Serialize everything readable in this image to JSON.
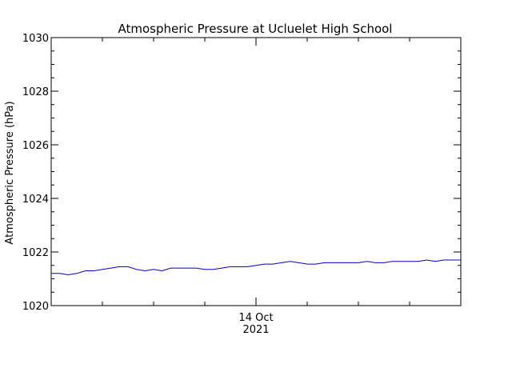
{
  "chart_data": {
    "type": "line",
    "title": "Atmospheric Pressure at Ucluelet High School",
    "ylabel": "Atmospheric Pressure (hPa)",
    "xlabel": "",
    "ylim": [
      1020,
      1030
    ],
    "yticks": [
      1020,
      1022,
      1024,
      1026,
      1028,
      1030
    ],
    "yticks_minor_step": 0.5,
    "xlim": [
      0,
      24
    ],
    "x_ticks": [
      {
        "x": 12,
        "labels": [
          "14 Oct",
          "2021"
        ]
      }
    ],
    "x_minor_ticks": [
      0,
      3,
      6,
      9,
      15,
      18,
      21,
      24
    ],
    "grid": false,
    "legend": "none",
    "series": [
      {
        "color": "#0000cc",
        "x": [
          0,
          0.5,
          1,
          1.5,
          2,
          2.5,
          3,
          3.5,
          4,
          4.5,
          5,
          5.5,
          6,
          6.5,
          7,
          7.5,
          8,
          8.5,
          9,
          9.5,
          10,
          10.5,
          11,
          11.5,
          12,
          12.5,
          13,
          13.5,
          14,
          14.5,
          15,
          15.5,
          16,
          16.5,
          17,
          17.5,
          18,
          18.5,
          19,
          19.5,
          20,
          20.5,
          21,
          21.5,
          22,
          22.5,
          23,
          23.5,
          24
        ],
        "values": [
          1021.2,
          1021.2,
          1021.15,
          1021.2,
          1021.3,
          1021.3,
          1021.35,
          1021.4,
          1021.45,
          1021.45,
          1021.35,
          1021.3,
          1021.35,
          1021.3,
          1021.4,
          1021.4,
          1021.4,
          1021.4,
          1021.35,
          1021.35,
          1021.4,
          1021.45,
          1021.45,
          1021.45,
          1021.5,
          1021.55,
          1021.55,
          1021.6,
          1021.65,
          1021.6,
          1021.55,
          1021.55,
          1021.6,
          1021.6,
          1021.6,
          1021.6,
          1021.6,
          1021.65,
          1021.6,
          1021.6,
          1021.65,
          1021.65,
          1021.65,
          1021.65,
          1021.7,
          1021.65,
          1021.7,
          1021.7,
          1021.7
        ]
      }
    ]
  }
}
